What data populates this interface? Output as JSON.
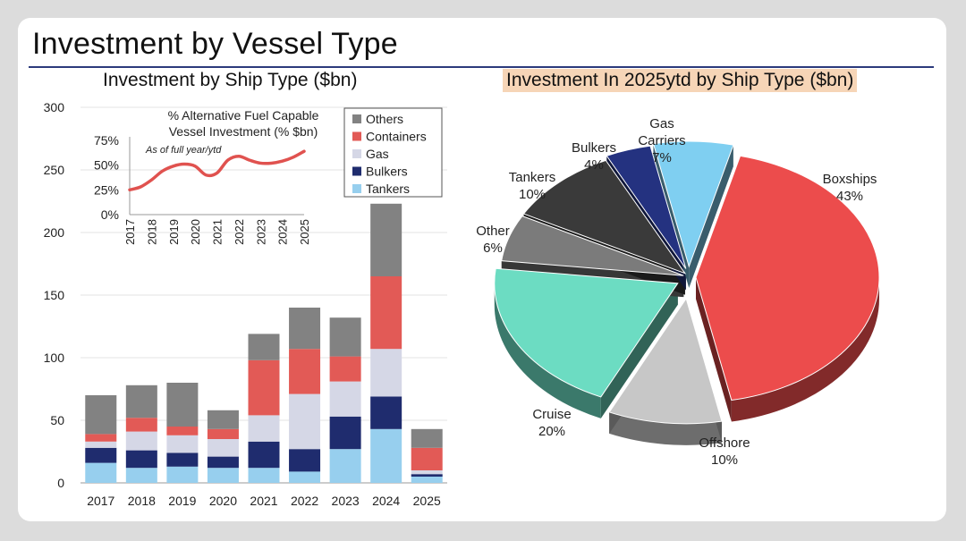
{
  "page": {
    "title": "Investment by Vessel Type"
  },
  "colors": {
    "Tankers": "#97cfee",
    "Bulkers": "#1f2c6e",
    "Gas": "#d5d7e6",
    "Containers": "#e25a56",
    "Others": "#828282",
    "inset_line": "#e0524f"
  },
  "chart_data": [
    {
      "type": "bar",
      "stacked": true,
      "title": "Investment by Ship Type ($bn)",
      "categories": [
        "2017",
        "2018",
        "2019",
        "2020",
        "2021",
        "2022",
        "2023",
        "2024",
        "2025"
      ],
      "ylim": [
        0,
        300
      ],
      "yticks": [
        "0",
        "50",
        "100",
        "150",
        "200",
        "250",
        "300"
      ],
      "grid": true,
      "legend_position": "top-right",
      "legend_order": [
        "Others",
        "Containers",
        "Gas",
        "Bulkers",
        "Tankers"
      ],
      "series": [
        {
          "name": "Tankers",
          "values": [
            16,
            12,
            13,
            12,
            12,
            9,
            27,
            43,
            5
          ]
        },
        {
          "name": "Bulkers",
          "values": [
            12,
            14,
            11,
            9,
            21,
            18,
            26,
            26,
            2
          ]
        },
        {
          "name": "Gas",
          "values": [
            5,
            15,
            14,
            14,
            21,
            44,
            28,
            38,
            3
          ]
        },
        {
          "name": "Containers",
          "values": [
            6,
            11,
            7,
            8,
            44,
            36,
            20,
            58,
            18
          ]
        },
        {
          "name": "Others",
          "values": [
            31,
            26,
            35,
            15,
            21,
            33,
            31,
            58,
            15
          ]
        }
      ]
    },
    {
      "type": "line",
      "title": "% Alternative Fuel Capable Vessel Investment (% $bn)",
      "title_lines": [
        "% Alternative Fuel Capable",
        "Vessel Investment (% $bn)"
      ],
      "annotation": "As of full year/ytd",
      "x": [
        "2017",
        "2018",
        "2019",
        "2020",
        "2021",
        "2022",
        "2023",
        "2024",
        "2025"
      ],
      "y_points": [
        [
          0,
          25
        ],
        [
          0.5,
          28
        ],
        [
          1,
          35
        ],
        [
          1.5,
          44
        ],
        [
          2,
          49
        ],
        [
          2.5,
          51
        ],
        [
          3,
          49
        ],
        [
          3.5,
          40
        ],
        [
          4,
          42
        ],
        [
          4.5,
          55
        ],
        [
          5,
          59
        ],
        [
          5.5,
          55
        ],
        [
          6,
          52
        ],
        [
          6.5,
          52
        ],
        [
          7,
          54
        ],
        [
          7.5,
          58
        ],
        [
          8,
          64
        ]
      ],
      "ylim": [
        0,
        75
      ],
      "yticks": [
        "0%",
        "25%",
        "50%",
        "75%"
      ]
    },
    {
      "type": "pie",
      "title": "Investment In 2025ytd by Ship Type ($bn)",
      "slices": [
        {
          "label": "Boxships",
          "value": 43,
          "text": "43%",
          "color": "#ec4c4c"
        },
        {
          "label": "Offshore",
          "value": 10,
          "text": "10%",
          "color": "#c7c7c7"
        },
        {
          "label": "Cruise",
          "value": 20,
          "text": "20%",
          "color": "#6cdcc2"
        },
        {
          "label": "Other",
          "value": 6,
          "text": "6%",
          "color": "#7b7b7b"
        },
        {
          "label": "Tankers",
          "value": 10,
          "text": "10%",
          "color": "#3a3a3a"
        },
        {
          "label": "Bulkers",
          "value": 4,
          "text": "4%",
          "color": "#243280"
        },
        {
          "label": "Gas Carriers",
          "label_lines": [
            "Gas",
            "Carriers"
          ],
          "value": 7,
          "text": "7%",
          "color": "#7fcff1"
        }
      ]
    }
  ]
}
